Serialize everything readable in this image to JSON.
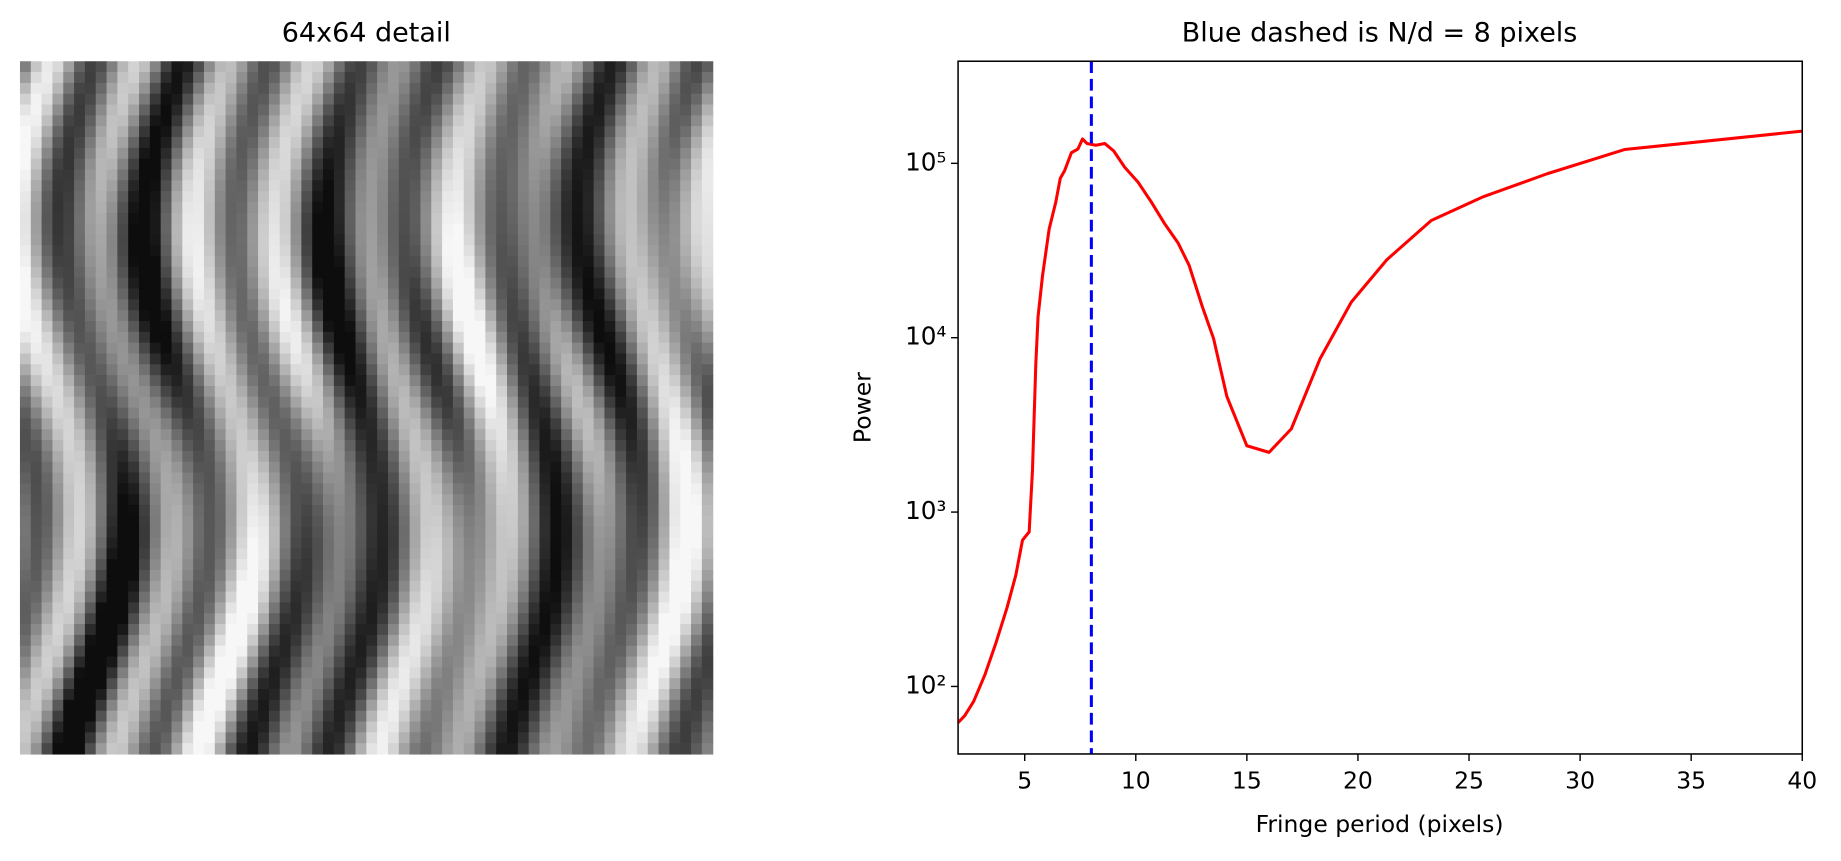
{
  "chart_data": [
    {
      "type": "image",
      "title": "64x64 detail",
      "colormap": "gray"
    },
    {
      "type": "line",
      "title": "Blue dashed is N/d = 8 pixels",
      "x_label": "Fringe period (pixels)",
      "y_label": "Power",
      "x": [
        2.0,
        2.3,
        2.7,
        3.2,
        3.7,
        4.2,
        4.6,
        4.9,
        5.2,
        5.35,
        5.5,
        5.6,
        5.8,
        6.1,
        6.4,
        6.6,
        6.8,
        7.1,
        7.4,
        7.6,
        7.8,
        8.2,
        8.6,
        9.0,
        9.5,
        10.1,
        10.7,
        11.3,
        11.9,
        12.4,
        13.0,
        13.5,
        14.1,
        15.0,
        16.0,
        17.0,
        18.3,
        19.7,
        21.3,
        23.3,
        25.6,
        28.5,
        32.0,
        40.0
      ],
      "values": [
        62,
        68,
        82,
        116,
        177,
        282,
        435,
        690,
        770,
        1750,
        7100,
        13200,
        22600,
        42000,
        60000,
        82000,
        91000,
        115000,
        121000,
        138000,
        130000,
        127000,
        130000,
        118000,
        95000,
        78000,
        60000,
        45000,
        35000,
        26000,
        15000,
        9900,
        4600,
        2400,
        2200,
        3000,
        7600,
        16000,
        28000,
        47000,
        64000,
        87000,
        120000,
        153000
      ],
      "color": "#ff0000",
      "vline": {
        "x": 8,
        "color": "#0000ff",
        "style": "dashed"
      },
      "xlim": [
        2,
        40
      ],
      "xticks": [
        5,
        10,
        15,
        20,
        25,
        30,
        35,
        40
      ],
      "ylim": [
        41,
        385000
      ],
      "ylog": true,
      "yticks": [
        {
          "value": 100,
          "label": "10²"
        },
        {
          "value": 1000,
          "label": "10³"
        },
        {
          "value": 10000,
          "label": "10⁴"
        },
        {
          "value": 100000,
          "label": "10⁵"
        }
      ]
    }
  ]
}
